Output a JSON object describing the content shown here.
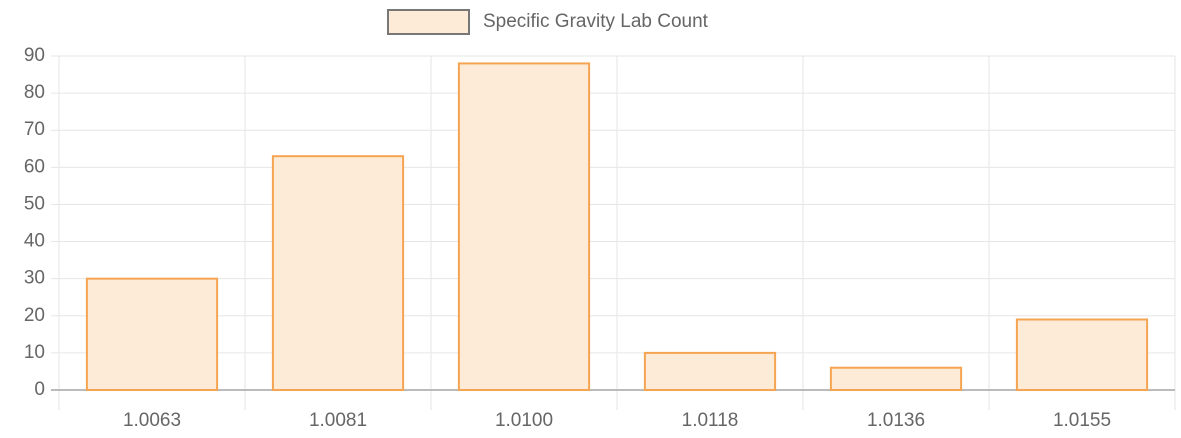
{
  "chart_data": {
    "type": "bar",
    "categories": [
      "1.0063",
      "1.0081",
      "1.0100",
      "1.0118",
      "1.0136",
      "1.0155"
    ],
    "series": [
      {
        "name": "Specific Gravity Lab Count",
        "color": "#fdebd8",
        "border_color": "#f5a552",
        "values": [
          30,
          63,
          88,
          10,
          6,
          19
        ]
      }
    ],
    "ylim": [
      0,
      90
    ],
    "yticks": [
      0,
      10,
      20,
      30,
      40,
      50,
      60,
      70,
      80,
      90
    ],
    "grid": true,
    "legend": "top"
  }
}
